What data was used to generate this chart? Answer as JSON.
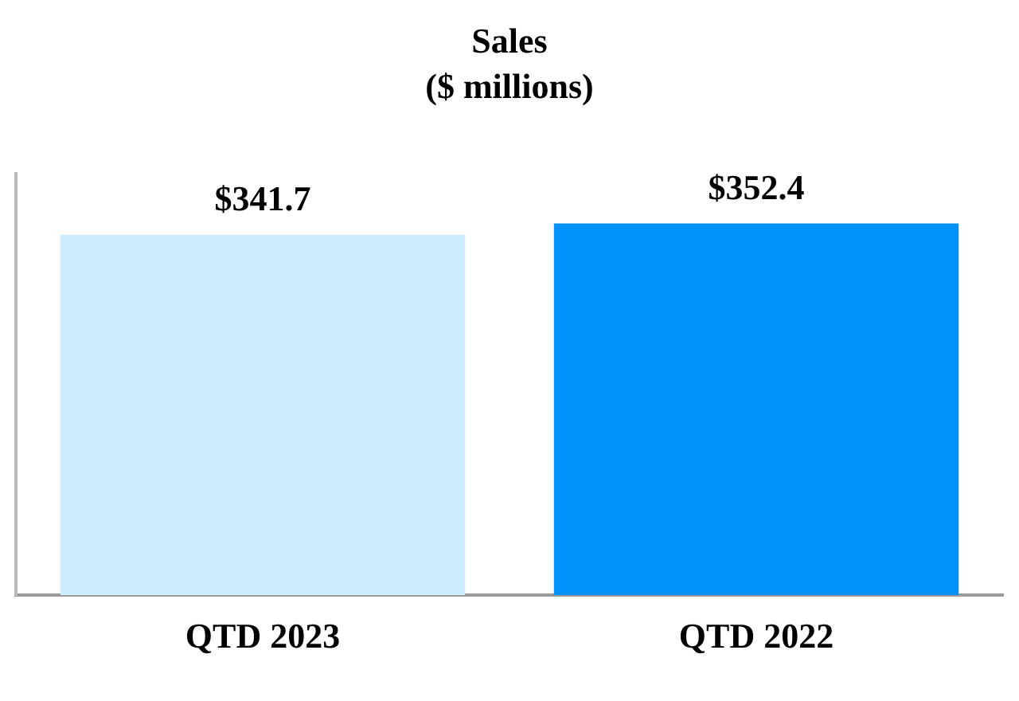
{
  "chart_data": {
    "type": "bar",
    "title": "Sales",
    "subtitle": "($ millions)",
    "categories": [
      "QTD 2023",
      "QTD 2022"
    ],
    "values": [
      341.7,
      352.4
    ],
    "colors": [
      "#cdecfd",
      "#0091fb"
    ],
    "value_labels": [
      "$341.7",
      "$352.4"
    ],
    "tick_labels": "x",
    "grid": false,
    "legend": false
  }
}
